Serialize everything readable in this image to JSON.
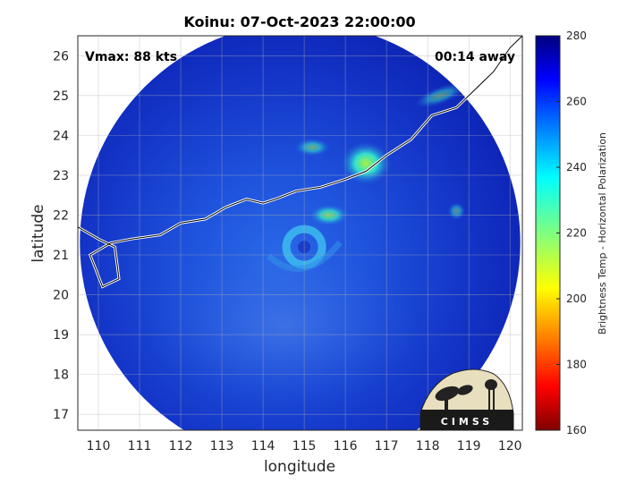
{
  "chart_data": {
    "type": "heatmap",
    "title": "Koinu: 07-Oct-2023 22:00:00",
    "xlabel": "longitude",
    "ylabel": "latitude",
    "xlim": [
      109.5,
      120.3
    ],
    "ylim": [
      16.6,
      26.5
    ],
    "xticks": [
      110,
      111,
      112,
      113,
      114,
      115,
      116,
      117,
      118,
      119,
      120
    ],
    "yticks": [
      17,
      18,
      19,
      20,
      21,
      22,
      23,
      24,
      25,
      26
    ],
    "grid": true,
    "annotations": {
      "vmax": "Vmax: 88 kts",
      "away": "00:14 away"
    },
    "colorbar": {
      "label": "Brightness Temp - Horizontal Polarization",
      "ticks": [
        160,
        180,
        200,
        220,
        240,
        260,
        280
      ],
      "range": [
        160,
        280
      ],
      "colormap": "jet"
    },
    "swath": {
      "center_lon": 114.9,
      "center_lat": 21.3,
      "radius_deg_lon": 5.35
    },
    "storm_center": {
      "lon": 115.0,
      "lat": 21.2
    },
    "logo_text": "CIMSS"
  },
  "colors": {
    "background_tb": "#1030c8",
    "land": "#ffffff",
    "coast": "#000000"
  }
}
